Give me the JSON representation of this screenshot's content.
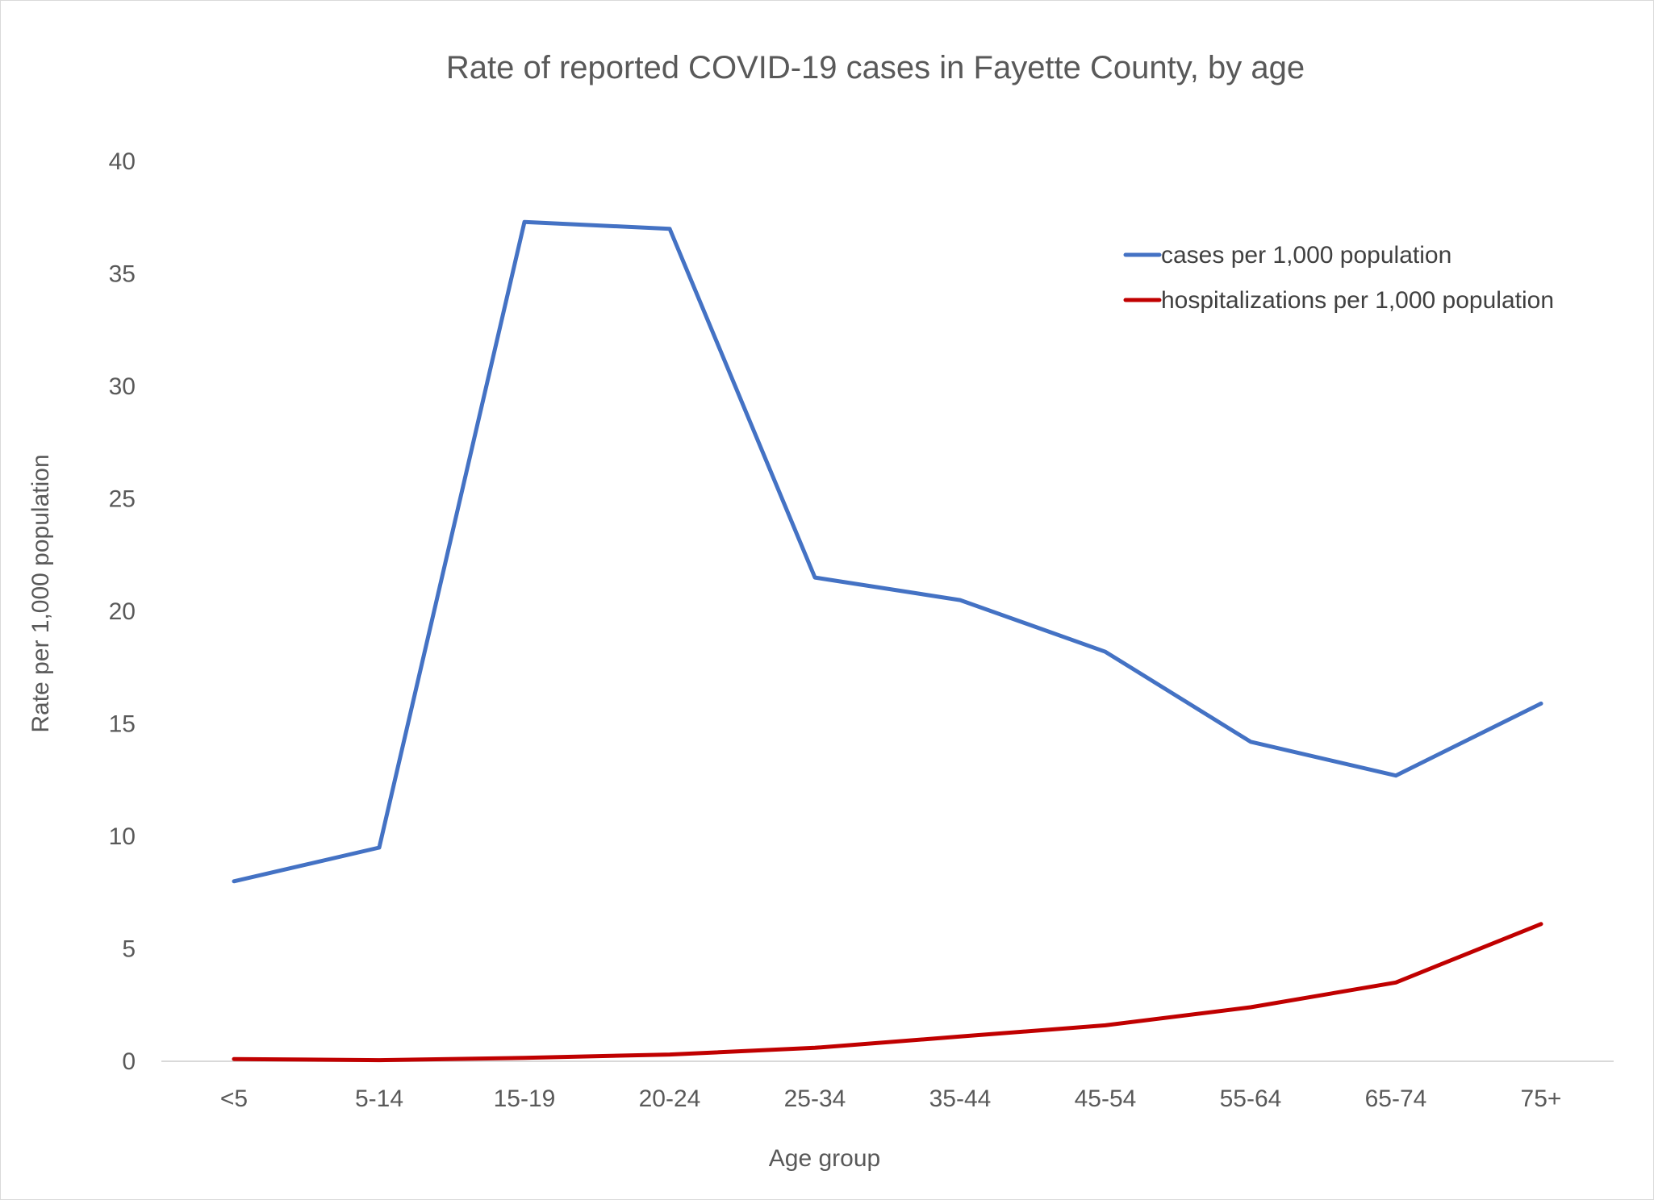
{
  "chart_data": {
    "type": "line",
    "title": "Rate of reported COVID-19 cases in Fayette County, by age",
    "xlabel": "Age group",
    "ylabel": "Rate per 1,000 population",
    "categories": [
      "<5",
      "5-14",
      "15-19",
      "20-24",
      "25-34",
      "35-44",
      "45-54",
      "55-64",
      "65-74",
      "75+"
    ],
    "ylim": [
      0,
      40
    ],
    "yticks": [
      0,
      5,
      10,
      15,
      20,
      25,
      30,
      35,
      40
    ],
    "grid": false,
    "legend_position": "top-right",
    "series": [
      {
        "name": "cases per 1,000 population",
        "color": "#4472c4",
        "values": [
          8.0,
          9.5,
          37.3,
          37.0,
          21.5,
          20.5,
          18.2,
          14.2,
          12.7,
          15.9
        ]
      },
      {
        "name": "hospitalizations per 1,000 population",
        "color": "#c00000",
        "values": [
          0.1,
          0.05,
          0.15,
          0.3,
          0.6,
          1.1,
          1.6,
          2.4,
          3.5,
          6.1
        ]
      }
    ]
  }
}
